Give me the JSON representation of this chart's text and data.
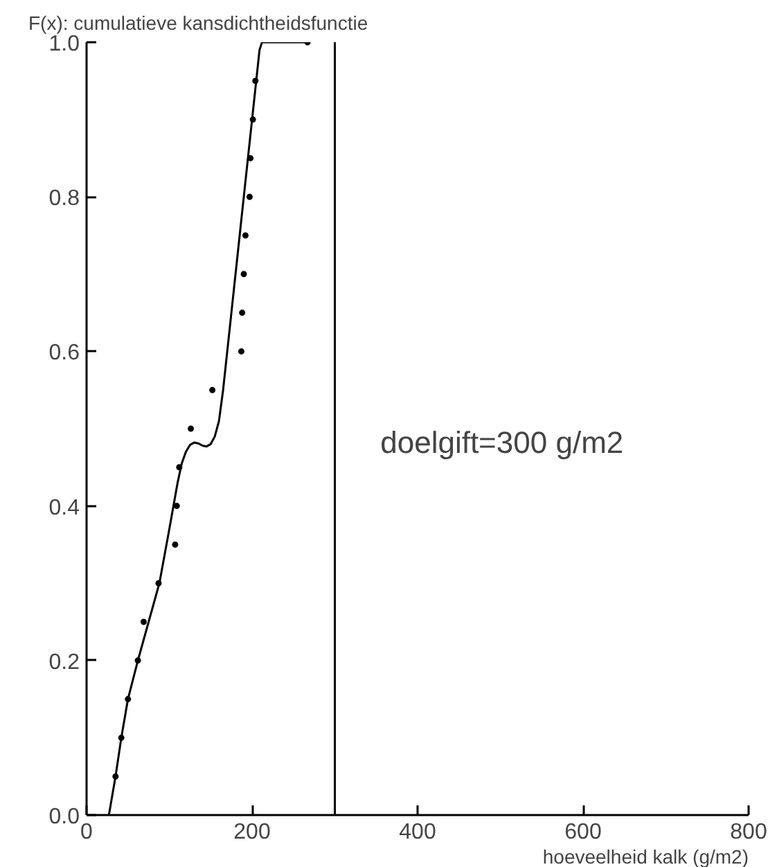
{
  "chart_data": {
    "type": "scatter",
    "ylabel": "F(x): cumulatieve kansdichtheidsfunctie",
    "xlabel": "hoeveelheid kalk (g/m2)",
    "xlim": [
      0,
      800
    ],
    "xticks": [
      0,
      200,
      400,
      600,
      800
    ],
    "ylim": [
      0,
      1
    ],
    "yticks": [
      {
        "value": 0,
        "label": "0.0"
      },
      {
        "value": 0.2,
        "label": "0.2"
      },
      {
        "value": 0.4,
        "label": "0.4"
      },
      {
        "value": 0.6,
        "label": "0.6"
      },
      {
        "value": 0.8,
        "label": "0.8"
      },
      {
        "value": 1,
        "label": "1.0"
      }
    ],
    "grid": false,
    "marker": "circle",
    "series": [
      {
        "color": "#000000",
        "x": [
          35,
          42,
          50,
          62,
          69,
          87,
          107,
          109,
          112,
          126,
          152,
          187,
          188,
          190,
          192,
          197,
          198,
          201,
          204,
          267
        ],
        "values": [
          0.05,
          0.1,
          0.15,
          0.2,
          0.25,
          0.3,
          0.35,
          0.4,
          0.45,
          0.5,
          0.55,
          0.6,
          0.65,
          0.7,
          0.75,
          0.8,
          0.85,
          0.9,
          0.95,
          1.0
        ]
      },
      {
        "type": "line",
        "color": "#000000",
        "line_style": "solid",
        "marker": "none",
        "x": [
          27,
          35,
          42,
          50,
          62,
          75,
          88,
          100,
          110,
          115,
          120,
          125,
          130,
          135,
          140,
          145,
          150,
          155,
          160,
          165,
          175,
          185,
          195,
          205,
          209,
          212,
          267
        ],
        "values": [
          0,
          0.05,
          0.1,
          0.15,
          0.2,
          0.25,
          0.3,
          0.37,
          0.43,
          0.455,
          0.47,
          0.479,
          0.482,
          0.481,
          0.478,
          0.477,
          0.48,
          0.49,
          0.51,
          0.55,
          0.65,
          0.75,
          0.85,
          0.95,
          0.99,
          1.0,
          1.0
        ]
      }
    ],
    "ref_lines": [
      {
        "axis": "x",
        "value": 300,
        "color": "#000000",
        "line_style": "solid"
      }
    ],
    "annotations": [
      "doelgift=300 g/m2"
    ]
  }
}
